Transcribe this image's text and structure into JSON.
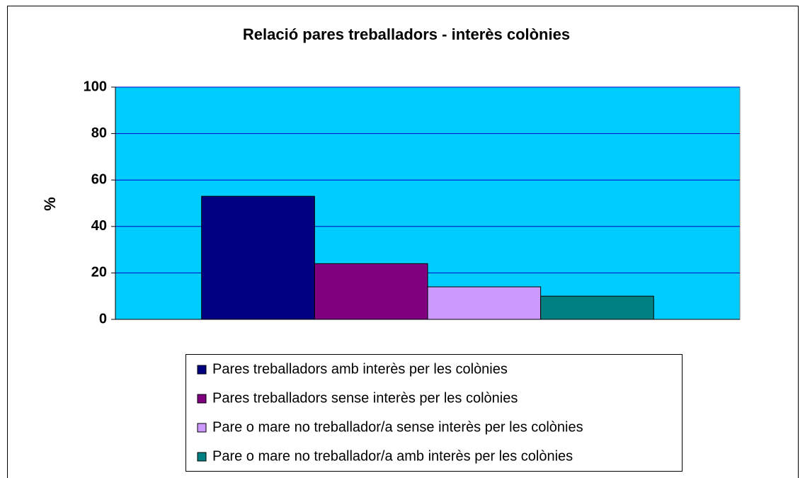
{
  "chart_data": {
    "type": "bar",
    "title": "Relació pares treballadors - interès colònies",
    "y_label": "%",
    "categories": [
      null
    ],
    "series": [
      {
        "name": "Pares treballadors amb interès per les colònies",
        "color": "#000080",
        "values": [
          53
        ]
      },
      {
        "name": "Pares treballadors sense interès per les colònies",
        "color": "#800080",
        "values": [
          24
        ]
      },
      {
        "name": "Pare o mare no treballador/a sense interès per les colònies",
        "color": "#cc99ff",
        "values": [
          14
        ]
      },
      {
        "name": "Pare o mare no treballador/a amb interès per les colònies",
        "color": "#008080",
        "values": [
          10
        ]
      }
    ],
    "ylim": [
      0,
      100
    ],
    "yticks": [
      0,
      20,
      40,
      60,
      80,
      100
    ],
    "grid": true,
    "plot_background": "#00ccff",
    "legend": "bottom"
  }
}
